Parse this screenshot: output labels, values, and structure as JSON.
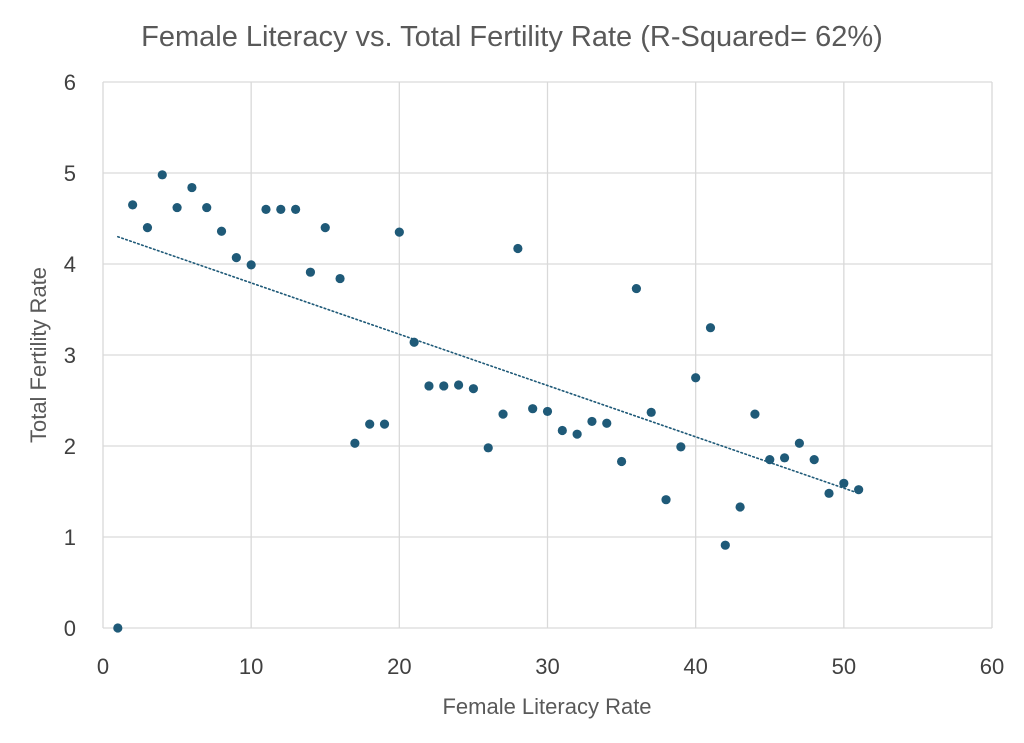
{
  "chart_data": {
    "type": "scatter",
    "title": "Female Literacy vs. Total Fertility Rate (R-Squared= 62%)",
    "xlabel": "Female Literacy Rate",
    "ylabel": "Total Fertility Rate",
    "xlim": [
      0,
      60
    ],
    "ylim": [
      0,
      6
    ],
    "x_ticks": [
      0,
      10,
      20,
      30,
      40,
      50,
      60
    ],
    "y_ticks": [
      0,
      1,
      2,
      3,
      4,
      5,
      6
    ],
    "grid": true,
    "legend": "none",
    "series": [
      {
        "color": "#1f5a78",
        "points": [
          [
            1,
            0.0
          ],
          [
            2,
            4.65
          ],
          [
            3,
            4.4
          ],
          [
            4,
            4.98
          ],
          [
            5,
            4.62
          ],
          [
            6,
            4.84
          ],
          [
            7,
            4.62
          ],
          [
            8,
            4.36
          ],
          [
            9,
            4.07
          ],
          [
            10,
            3.99
          ],
          [
            11,
            4.6
          ],
          [
            12,
            4.6
          ],
          [
            13,
            4.6
          ],
          [
            14,
            3.91
          ],
          [
            15,
            4.4
          ],
          [
            16,
            3.84
          ],
          [
            17,
            2.03
          ],
          [
            18,
            2.24
          ],
          [
            19,
            2.24
          ],
          [
            20,
            4.35
          ],
          [
            21,
            3.14
          ],
          [
            22,
            2.66
          ],
          [
            23,
            2.66
          ],
          [
            24,
            2.67
          ],
          [
            25,
            2.63
          ],
          [
            26,
            1.98
          ],
          [
            27,
            2.35
          ],
          [
            28,
            4.17
          ],
          [
            29,
            2.41
          ],
          [
            30,
            2.38
          ],
          [
            31,
            2.17
          ],
          [
            32,
            2.13
          ],
          [
            33,
            2.27
          ],
          [
            34,
            2.25
          ],
          [
            35,
            1.83
          ],
          [
            36,
            3.73
          ],
          [
            37,
            2.37
          ],
          [
            38,
            1.41
          ],
          [
            39,
            1.99
          ],
          [
            40,
            2.75
          ],
          [
            41,
            3.3
          ],
          [
            42,
            0.91
          ],
          [
            43,
            1.33
          ],
          [
            44,
            2.35
          ],
          [
            45,
            1.85
          ],
          [
            46,
            1.87
          ],
          [
            47,
            2.03
          ],
          [
            48,
            1.85
          ],
          [
            49,
            1.48
          ],
          [
            50,
            1.59
          ],
          [
            51,
            1.52
          ]
        ]
      }
    ],
    "trendline": {
      "type": "linear",
      "from": [
        1,
        4.3
      ],
      "to": [
        51,
        1.48
      ],
      "style": "dotted",
      "color": "#1f5a78"
    }
  }
}
